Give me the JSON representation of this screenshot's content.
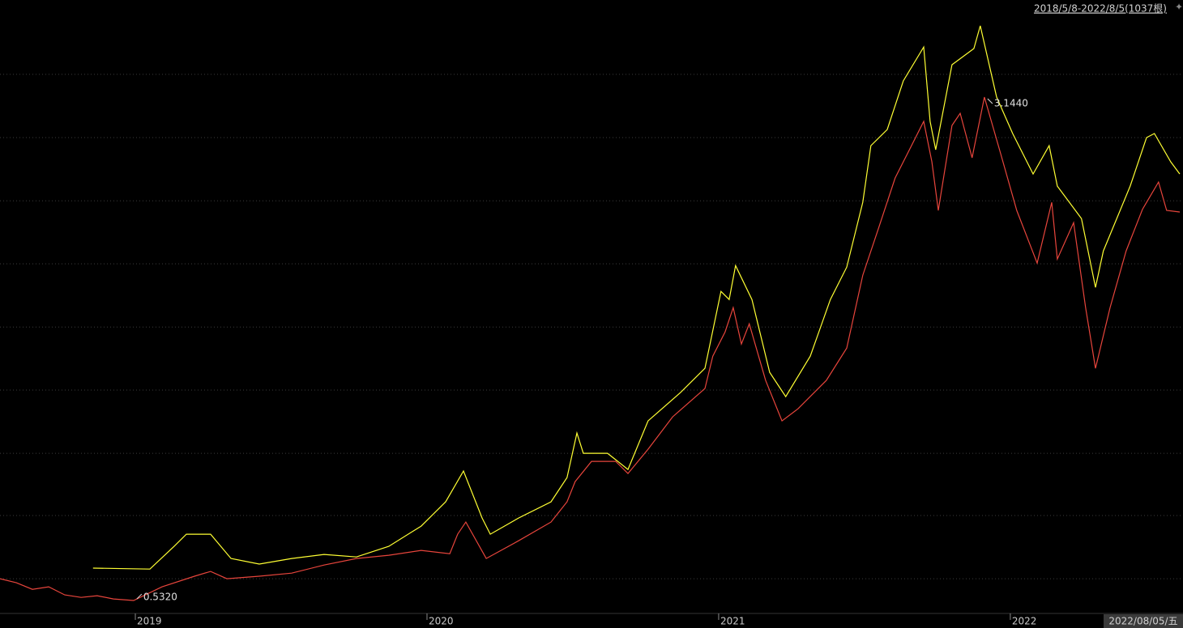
{
  "chart_data": {
    "type": "line",
    "range_label": "2018/5/8-2022/8/5(1037根)",
    "cursor_label": "2022/08/05/五",
    "xlim": [
      2018.536,
      2022.592
    ],
    "xticks": [
      2019,
      2020,
      2021,
      2022
    ],
    "ylim": [
      0.465,
      3.648
    ],
    "gridlines": [
      3.262,
      2.934,
      2.606,
      2.279,
      1.951,
      1.624,
      1.296,
      0.973,
      0.645
    ],
    "grid": true,
    "series": [
      {
        "name": "yellow",
        "color": "#ffff33",
        "x": [
          2018.855,
          2019.05,
          2019.133,
          2019.175,
          2019.258,
          2019.328,
          2019.425,
          2019.536,
          2019.647,
          2019.758,
          2019.869,
          2019.98,
          2020.064,
          2020.125,
          2020.189,
          2020.217,
          2020.314,
          2020.425,
          2020.48,
          2020.514,
          2020.536,
          2020.619,
          2020.689,
          2020.758,
          2020.869,
          2020.953,
          2021.008,
          2021.036,
          2021.058,
          2021.114,
          2021.175,
          2021.23,
          2021.314,
          2021.383,
          2021.439,
          2021.494,
          2021.522,
          2021.578,
          2021.633,
          2021.703,
          2021.725,
          2021.744,
          2021.8,
          2021.875,
          2021.897,
          2021.953,
          2022.008,
          2022.078,
          2022.133,
          2022.161,
          2022.244,
          2022.292,
          2022.319,
          2022.411,
          2022.467,
          2022.494,
          2022.55,
          2022.581
        ],
        "values": [
          0.7,
          0.695,
          0.813,
          0.876,
          0.876,
          0.75,
          0.721,
          0.75,
          0.771,
          0.758,
          0.813,
          0.918,
          1.044,
          1.204,
          0.96,
          0.876,
          0.96,
          1.044,
          1.17,
          1.401,
          1.296,
          1.296,
          1.212,
          1.464,
          1.611,
          1.737,
          2.136,
          2.094,
          2.27,
          2.094,
          1.716,
          1.59,
          1.8,
          2.094,
          2.262,
          2.598,
          2.892,
          2.976,
          3.228,
          3.404,
          3.018,
          2.871,
          3.312,
          3.396,
          3.514,
          3.144,
          2.955,
          2.745,
          2.892,
          2.682,
          2.514,
          2.157,
          2.346,
          2.682,
          2.934,
          2.955,
          2.808,
          2.745
        ]
      },
      {
        "name": "red",
        "color": "#e8453c",
        "x": [
          2018.536,
          2018.592,
          2018.647,
          2018.703,
          2018.758,
          2018.814,
          2018.869,
          2018.925,
          2018.994,
          2019.092,
          2019.203,
          2019.258,
          2019.314,
          2019.425,
          2019.536,
          2019.647,
          2019.758,
          2019.869,
          2019.98,
          2020.078,
          2020.105,
          2020.133,
          2020.203,
          2020.314,
          2020.425,
          2020.48,
          2020.508,
          2020.564,
          2020.647,
          2020.689,
          2020.758,
          2020.842,
          2020.953,
          2020.98,
          2021.022,
          2021.05,
          2021.078,
          2021.105,
          2021.161,
          2021.217,
          2021.272,
          2021.369,
          2021.439,
          2021.494,
          2021.55,
          2021.605,
          2021.661,
          2021.703,
          2021.731,
          2021.753,
          2021.8,
          2021.828,
          2021.869,
          2021.911,
          2021.967,
          2022.022,
          2022.092,
          2022.142,
          2022.161,
          2022.217,
          2022.258,
          2022.292,
          2022.342,
          2022.397,
          2022.453,
          2022.508,
          2022.536,
          2022.581
        ],
        "values": [
          0.645,
          0.624,
          0.59,
          0.603,
          0.561,
          0.548,
          0.557,
          0.54,
          0.532,
          0.603,
          0.658,
          0.683,
          0.645,
          0.658,
          0.674,
          0.716,
          0.75,
          0.767,
          0.792,
          0.775,
          0.876,
          0.939,
          0.75,
          0.842,
          0.939,
          1.044,
          1.149,
          1.254,
          1.254,
          1.191,
          1.317,
          1.485,
          1.632,
          1.8,
          1.926,
          2.052,
          1.863,
          1.968,
          1.674,
          1.464,
          1.527,
          1.674,
          1.842,
          2.22,
          2.472,
          2.724,
          2.892,
          3.018,
          2.808,
          2.556,
          2.997,
          3.06,
          2.829,
          3.144,
          2.85,
          2.556,
          2.283,
          2.598,
          2.304,
          2.493,
          2.052,
          1.737,
          2.052,
          2.346,
          2.562,
          2.703,
          2.556,
          2.548
        ]
      }
    ],
    "annotations": [
      {
        "text": "3.1440",
        "x": 2021.911,
        "y": 3.144
      },
      {
        "text": "0.5320",
        "x": 2018.994,
        "y": 0.532
      }
    ]
  }
}
